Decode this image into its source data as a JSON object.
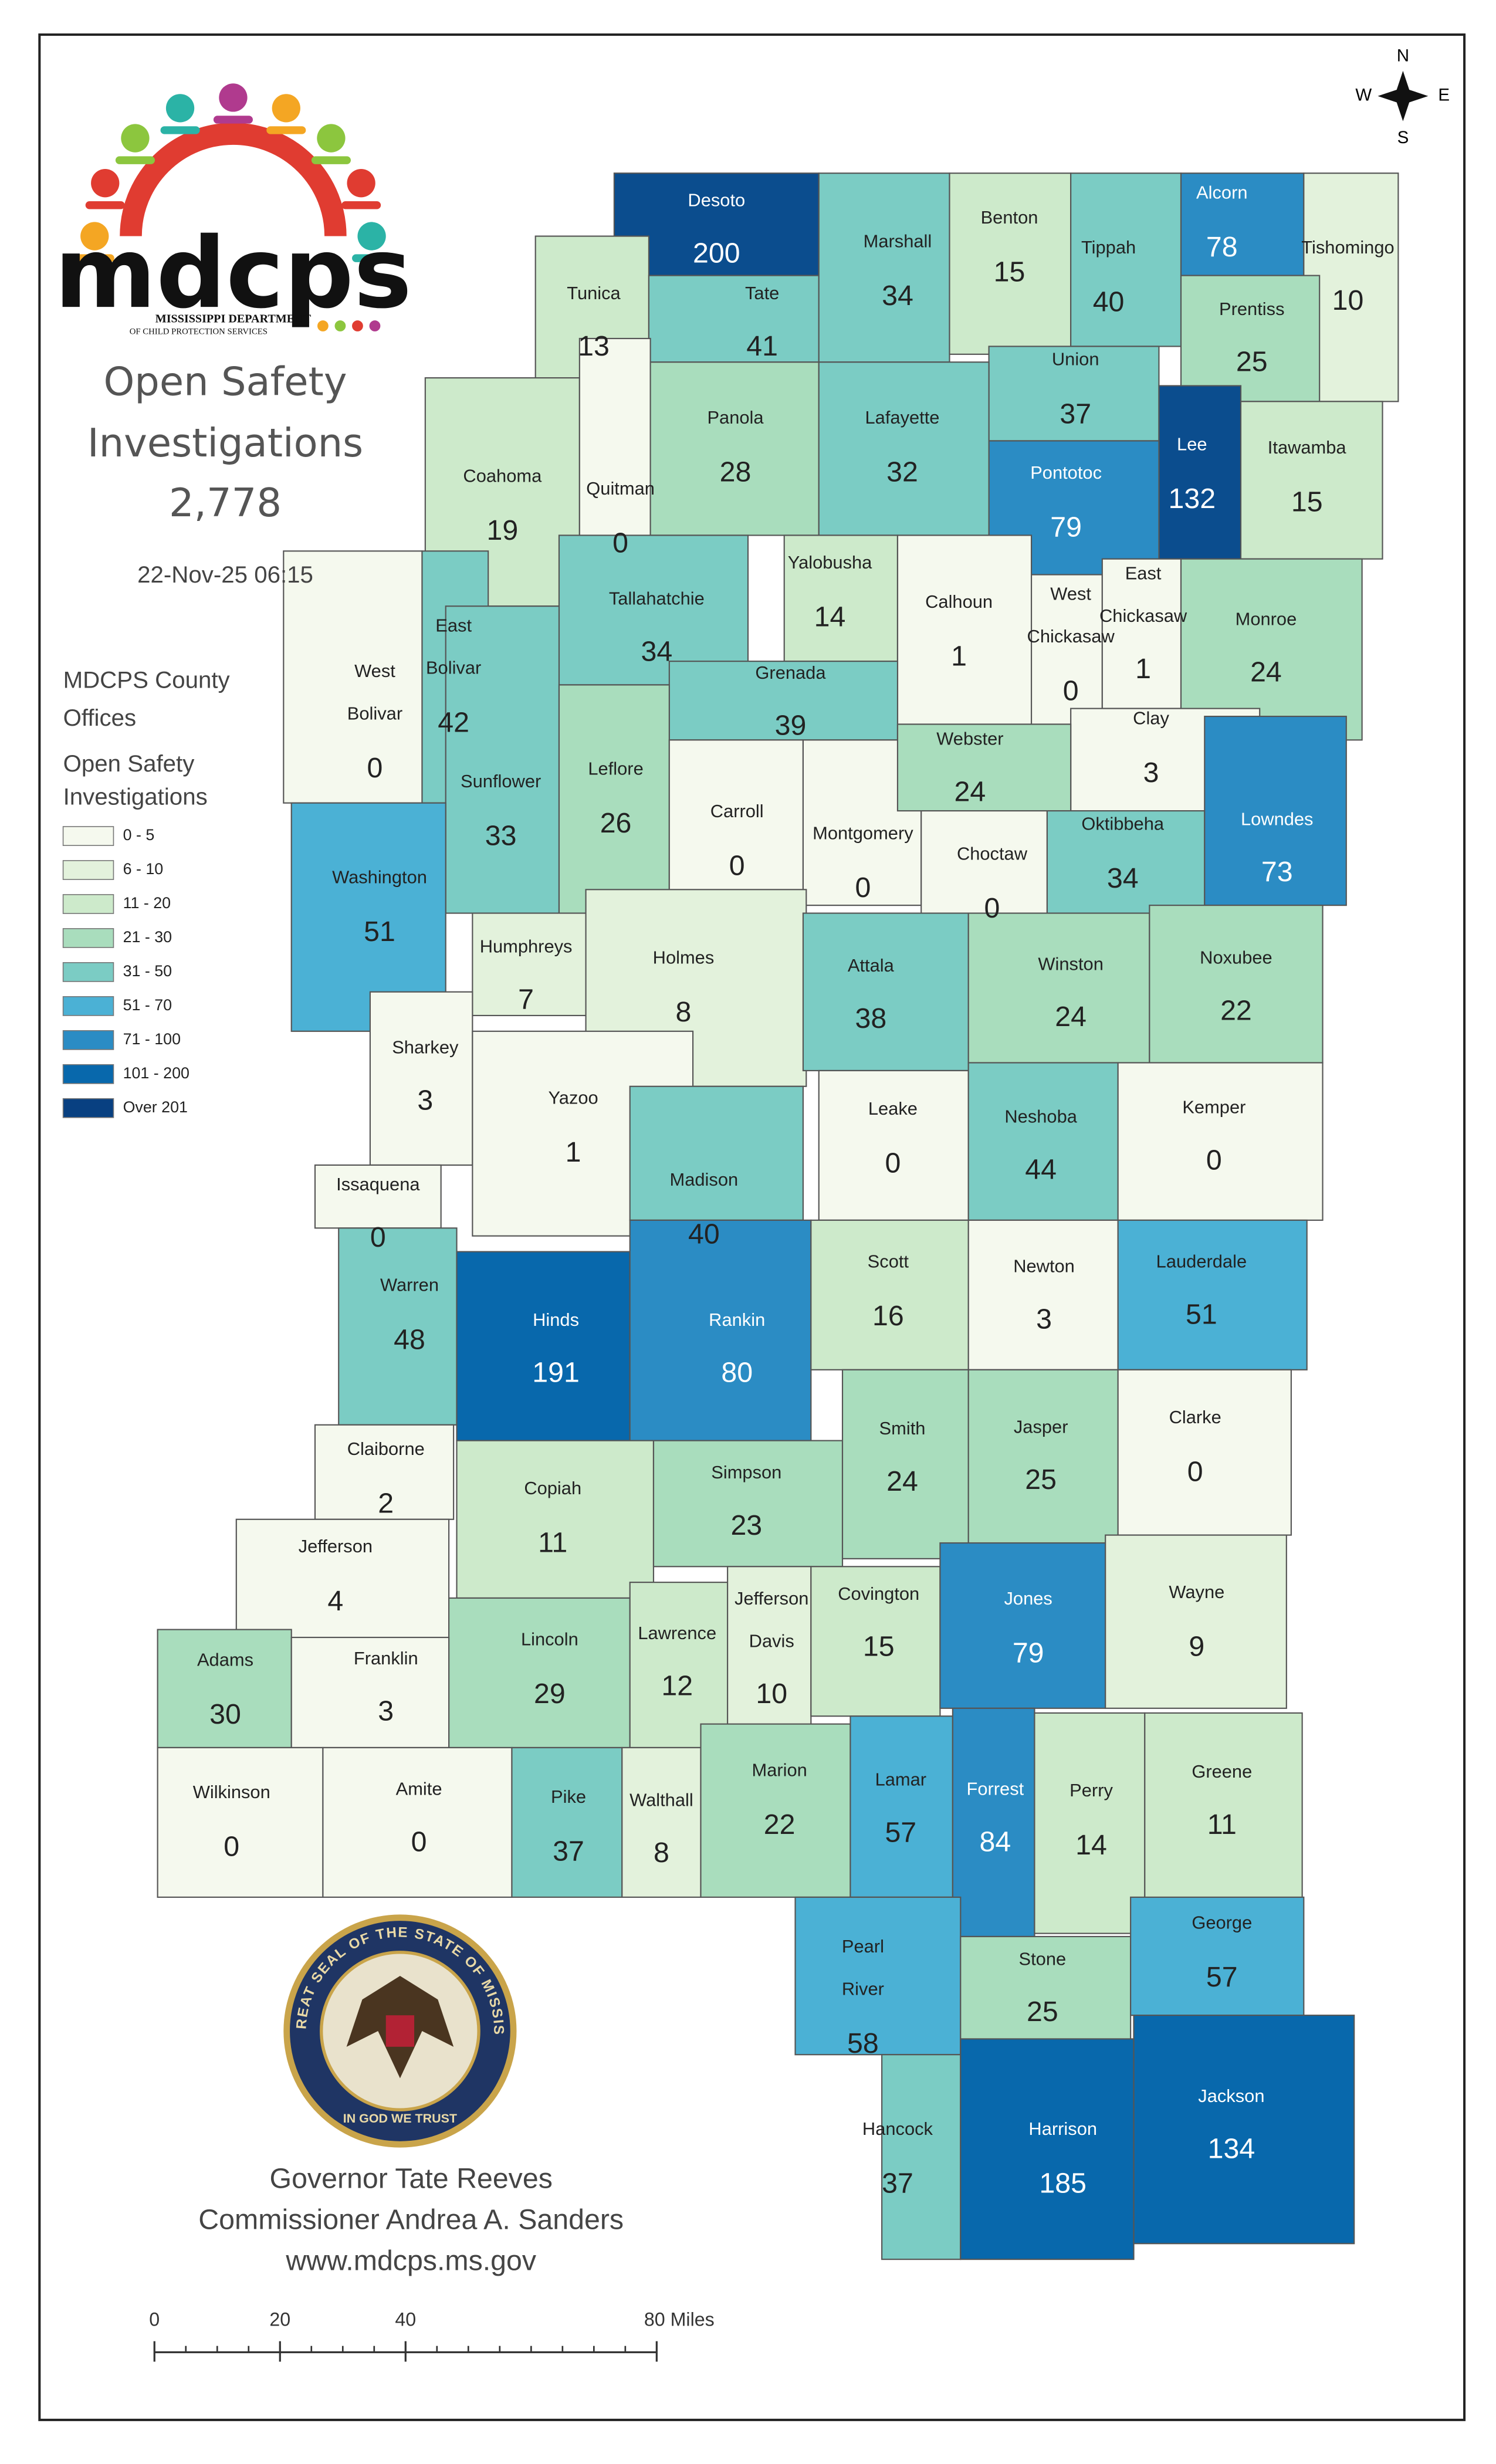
{
  "logo": {
    "wordmark": "mdcps",
    "line1": "MISSISSIPPI DEPARTMENT",
    "line2": "OF CHILD PROTECTION SERVICES"
  },
  "title": {
    "lines": [
      "Open Safety",
      "Investigations"
    ],
    "total": "2,778",
    "timestamp": "22-Nov-25 06:15"
  },
  "legend": {
    "title_lines": [
      "MDCPS County",
      "Offices"
    ],
    "subtitle_lines": [
      "Open Safety",
      "Investigations"
    ],
    "items": [
      {
        "label": "0 - 5",
        "color": "#f5f9ee"
      },
      {
        "label": "6 - 10",
        "color": "#e3f2dc"
      },
      {
        "label": "11 - 20",
        "color": "#cdeacb"
      },
      {
        "label": "21 - 30",
        "color": "#a9ddbd"
      },
      {
        "label": "31 - 50",
        "color": "#7bccc4"
      },
      {
        "label": "51 - 70",
        "color": "#4bb1d5"
      },
      {
        "label": "71 - 100",
        "color": "#2b8cc4"
      },
      {
        "label": "101 - 200",
        "color": "#0868ac"
      },
      {
        "label": "Over 201",
        "color": "#084081"
      }
    ]
  },
  "counties": [
    {
      "name": [
        "Desoto"
      ],
      "value": 200,
      "color": "#0b4d8e"
    },
    {
      "name": [
        "Tunica"
      ],
      "value": 13,
      "color": "#cdeacb"
    },
    {
      "name": [
        "Tate"
      ],
      "value": 41,
      "color": "#7bccc4"
    },
    {
      "name": [
        "Marshall"
      ],
      "value": 34,
      "color": "#7bccc4"
    },
    {
      "name": [
        "Benton"
      ],
      "value": 15,
      "color": "#cdeacb"
    },
    {
      "name": [
        "Tippah"
      ],
      "value": 40,
      "color": "#7bccc4"
    },
    {
      "name": [
        "Alcorn"
      ],
      "value": 78,
      "color": "#2b8cc4"
    },
    {
      "name": [
        "Tishomingo"
      ],
      "value": 10,
      "color": "#e3f2dc"
    },
    {
      "name": [
        "Prentiss"
      ],
      "value": 25,
      "color": "#a9ddbd"
    },
    {
      "name": [
        "Union"
      ],
      "value": 37,
      "color": "#7bccc4"
    },
    {
      "name": [
        "Lee"
      ],
      "value": 132,
      "color": "#0b4d8e"
    },
    {
      "name": [
        "Itawamba"
      ],
      "value": 15,
      "color": "#cdeacb"
    },
    {
      "name": [
        "Pontotoc"
      ],
      "value": 79,
      "color": "#2b8cc4"
    },
    {
      "name": [
        "Coahoma"
      ],
      "value": 19,
      "color": "#cdeacb"
    },
    {
      "name": [
        "Quitman"
      ],
      "value": 0,
      "color": "#f5f9ee"
    },
    {
      "name": [
        "Panola"
      ],
      "value": 28,
      "color": "#a9ddbd"
    },
    {
      "name": [
        "Lafayette"
      ],
      "value": 32,
      "color": "#7bccc4"
    },
    {
      "name": [
        "Yalobusha"
      ],
      "value": 14,
      "color": "#cdeacb"
    },
    {
      "name": [
        "Calhoun"
      ],
      "value": 1,
      "color": "#f5f9ee"
    },
    {
      "name": [
        "West",
        "Chickasaw"
      ],
      "value": 0,
      "color": "#f5f9ee"
    },
    {
      "name": [
        "East",
        "Chickasaw"
      ],
      "value": 1,
      "color": "#f5f9ee"
    },
    {
      "name": [
        "Monroe"
      ],
      "value": 24,
      "color": "#a9ddbd"
    },
    {
      "name": [
        "Clay"
      ],
      "value": 3,
      "color": "#f5f9ee"
    },
    {
      "name": [
        "Tallahatchie"
      ],
      "value": 34,
      "color": "#7bccc4"
    },
    {
      "name": [
        "Grenada"
      ],
      "value": 39,
      "color": "#7bccc4"
    },
    {
      "name": [
        "West",
        "Bolivar"
      ],
      "value": 0,
      "color": "#f5f9ee"
    },
    {
      "name": [
        "East",
        "Bolivar"
      ],
      "value": 42,
      "color": "#7bccc4"
    },
    {
      "name": [
        "Sunflower"
      ],
      "value": 33,
      "color": "#7bccc4"
    },
    {
      "name": [
        "Leflore"
      ],
      "value": 26,
      "color": "#a9ddbd"
    },
    {
      "name": [
        "Carroll"
      ],
      "value": 0,
      "color": "#f5f9ee"
    },
    {
      "name": [
        "Montgomery"
      ],
      "value": 0,
      "color": "#f5f9ee"
    },
    {
      "name": [
        "Webster"
      ],
      "value": 24,
      "color": "#a9ddbd"
    },
    {
      "name": [
        "Choctaw"
      ],
      "value": 0,
      "color": "#f5f9ee"
    },
    {
      "name": [
        "Oktibbeha"
      ],
      "value": 34,
      "color": "#7bccc4"
    },
    {
      "name": [
        "Lowndes"
      ],
      "value": 73,
      "color": "#2b8cc4"
    },
    {
      "name": [
        "Washington"
      ],
      "value": 51,
      "color": "#4bb1d5"
    },
    {
      "name": [
        "Humphreys"
      ],
      "value": 7,
      "color": "#e3f2dc"
    },
    {
      "name": [
        "Holmes"
      ],
      "value": 8,
      "color": "#e3f2dc"
    },
    {
      "name": [
        "Attala"
      ],
      "value": 38,
      "color": "#7bccc4"
    },
    {
      "name": [
        "Winston"
      ],
      "value": 24,
      "color": "#a9ddbd"
    },
    {
      "name": [
        "Noxubee"
      ],
      "value": 22,
      "color": "#a9ddbd"
    },
    {
      "name": [
        "Sharkey"
      ],
      "value": 3,
      "color": "#f5f9ee"
    },
    {
      "name": [
        "Yazoo"
      ],
      "value": 1,
      "color": "#f5f9ee"
    },
    {
      "name": [
        "Leake"
      ],
      "value": 0,
      "color": "#f5f9ee"
    },
    {
      "name": [
        "Neshoba"
      ],
      "value": 44,
      "color": "#7bccc4"
    },
    {
      "name": [
        "Kemper"
      ],
      "value": 0,
      "color": "#f5f9ee"
    },
    {
      "name": [
        "Issaquena"
      ],
      "value": 0,
      "color": "#f5f9ee"
    },
    {
      "name": [
        "Madison"
      ],
      "value": 40,
      "color": "#7bccc4"
    },
    {
      "name": [
        "Warren"
      ],
      "value": 48,
      "color": "#7bccc4"
    },
    {
      "name": [
        "Hinds"
      ],
      "value": 191,
      "color": "#0868ac"
    },
    {
      "name": [
        "Rankin"
      ],
      "value": 80,
      "color": "#2b8cc4"
    },
    {
      "name": [
        "Scott"
      ],
      "value": 16,
      "color": "#cdeacb"
    },
    {
      "name": [
        "Newton"
      ],
      "value": 3,
      "color": "#f5f9ee"
    },
    {
      "name": [
        "Lauderdale"
      ],
      "value": 51,
      "color": "#4bb1d5"
    },
    {
      "name": [
        "Claiborne"
      ],
      "value": 2,
      "color": "#f5f9ee"
    },
    {
      "name": [
        "Copiah"
      ],
      "value": 11,
      "color": "#cdeacb"
    },
    {
      "name": [
        "Simpson"
      ],
      "value": 23,
      "color": "#a9ddbd"
    },
    {
      "name": [
        "Smith"
      ],
      "value": 24,
      "color": "#a9ddbd"
    },
    {
      "name": [
        "Jasper"
      ],
      "value": 25,
      "color": "#a9ddbd"
    },
    {
      "name": [
        "Clarke"
      ],
      "value": 0,
      "color": "#f5f9ee"
    },
    {
      "name": [
        "Jefferson"
      ],
      "value": 4,
      "color": "#f5f9ee"
    },
    {
      "name": [
        "Lincoln"
      ],
      "value": 29,
      "color": "#a9ddbd"
    },
    {
      "name": [
        "Lawrence"
      ],
      "value": 12,
      "color": "#cdeacb"
    },
    {
      "name": [
        "Jefferson",
        "Davis"
      ],
      "value": 10,
      "color": "#e3f2dc"
    },
    {
      "name": [
        "Covington"
      ],
      "value": 15,
      "color": "#cdeacb"
    },
    {
      "name": [
        "Jones"
      ],
      "value": 79,
      "color": "#2b8cc4"
    },
    {
      "name": [
        "Wayne"
      ],
      "value": 9,
      "color": "#e3f2dc"
    },
    {
      "name": [
        "Adams"
      ],
      "value": 30,
      "color": "#a9ddbd"
    },
    {
      "name": [
        "Franklin"
      ],
      "value": 3,
      "color": "#f5f9ee"
    },
    {
      "name": [
        "Wilkinson"
      ],
      "value": 0,
      "color": "#f5f9ee"
    },
    {
      "name": [
        "Amite"
      ],
      "value": 0,
      "color": "#f5f9ee"
    },
    {
      "name": [
        "Pike"
      ],
      "value": 37,
      "color": "#7bccc4"
    },
    {
      "name": [
        "Walthall"
      ],
      "value": 8,
      "color": "#e3f2dc"
    },
    {
      "name": [
        "Marion"
      ],
      "value": 22,
      "color": "#a9ddbd"
    },
    {
      "name": [
        "Lamar"
      ],
      "value": 57,
      "color": "#4bb1d5"
    },
    {
      "name": [
        "Forrest"
      ],
      "value": 84,
      "color": "#2b8cc4"
    },
    {
      "name": [
        "Perry"
      ],
      "value": 14,
      "color": "#cdeacb"
    },
    {
      "name": [
        "Greene"
      ],
      "value": 11,
      "color": "#cdeacb"
    },
    {
      "name": [
        "Pearl",
        "River"
      ],
      "value": 58,
      "color": "#4bb1d5"
    },
    {
      "name": [
        "Stone"
      ],
      "value": 25,
      "color": "#a9ddbd"
    },
    {
      "name": [
        "George"
      ],
      "value": 57,
      "color": "#4bb1d5"
    },
    {
      "name": [
        "Hancock"
      ],
      "value": 37,
      "color": "#7bccc4"
    },
    {
      "name": [
        "Harrison"
      ],
      "value": 185,
      "color": "#0868ac"
    },
    {
      "name": [
        "Jackson"
      ],
      "value": 134,
      "color": "#0868ac"
    }
  ],
  "seal": {
    "ring": "THE GREAT SEAL OF THE STATE OF MISSISSIPPI",
    "motto": "IN GOD WE TRUST"
  },
  "footer": [
    "Governor Tate Reeves",
    "Commissioner Andrea A. Sanders",
    "www.mdcps.ms.gov"
  ],
  "scale": {
    "ticks": [
      0,
      20,
      40,
      {
        "value": 80,
        "label": "80 Miles"
      }
    ]
  },
  "compass": {
    "n": "N",
    "s": "S",
    "e": "E",
    "w": "W"
  }
}
